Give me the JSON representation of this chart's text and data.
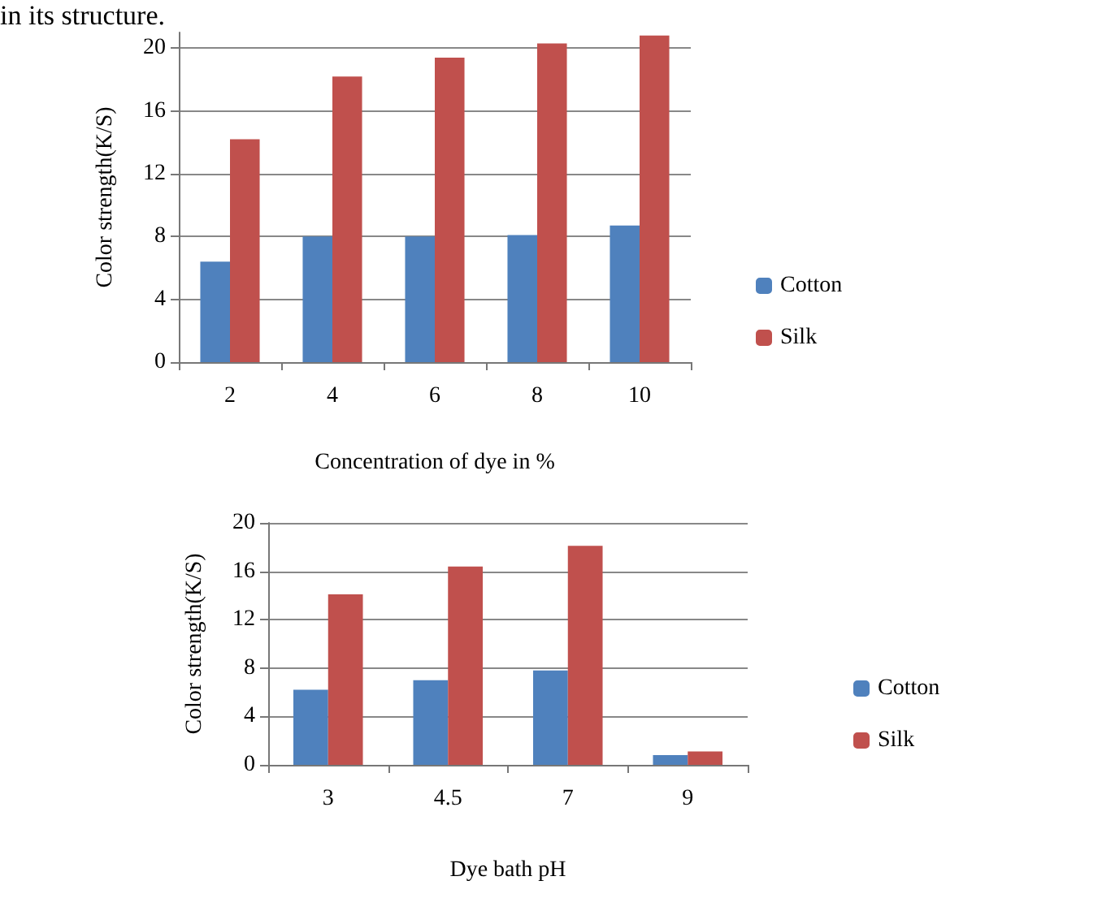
{
  "chart_data": [
    {
      "type": "bar",
      "categories": [
        "2",
        "4",
        "6",
        "8",
        "10"
      ],
      "xlabel": "Concentration of dye in %",
      "ylabel": "Color strength(K/S)",
      "annotations": [
        "in its structure."
      ],
      "series": [
        {
          "name": "Cotton",
          "color": "#4f81bd",
          "values": [
            6.4,
            8.0,
            8.0,
            8.1,
            8.7
          ]
        },
        {
          "name": "Silk",
          "color": "#c0504d",
          "values": [
            14.2,
            18.2,
            19.4,
            20.3,
            20.8
          ]
        }
      ],
      "ylim": [
        0,
        21
      ],
      "yticks": [
        0,
        4,
        8,
        12,
        16,
        20
      ],
      "grid": "y",
      "legend": "right"
    },
    {
      "type": "bar",
      "categories": [
        "3",
        "4.5",
        "7",
        "9"
      ],
      "xlabel": "Dye bath pH",
      "ylabel": "Color strength(K/S)",
      "series": [
        {
          "name": "Cotton",
          "color": "#4f81bd",
          "values": [
            6.2,
            7.0,
            7.8,
            0.8
          ]
        },
        {
          "name": "Silk",
          "color": "#c0504d",
          "values": [
            14.1,
            16.4,
            18.1,
            1.1
          ]
        }
      ],
      "ylim": [
        0,
        20
      ],
      "yticks": [
        0,
        4,
        8,
        12,
        16,
        20
      ],
      "grid": "y",
      "legend": "right"
    }
  ]
}
